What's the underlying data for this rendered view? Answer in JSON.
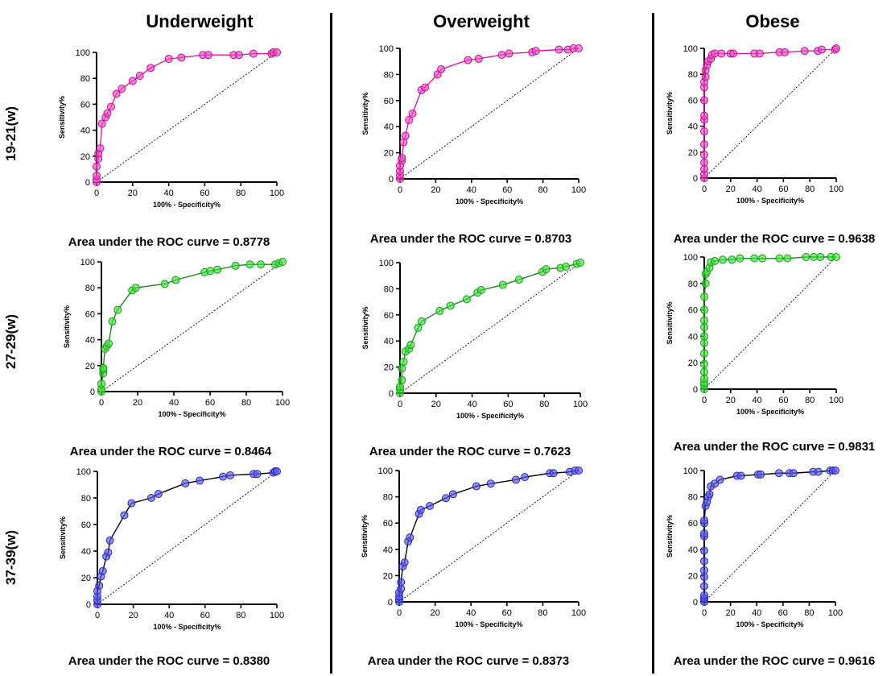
{
  "columns": [
    "Underweight",
    "Overweight",
    "Obese"
  ],
  "rows": [
    "19-21(w)",
    "27-29(w)",
    "37-39(w)"
  ],
  "colors": {
    "magenta": {
      "fill": "#e64fc8",
      "line": "#e0199e",
      "stroke": "#c0108a"
    },
    "green": {
      "fill": "#3fe03a",
      "line": "#1a8a1a",
      "stroke": "#1a9a1a"
    },
    "blue": {
      "fill": "#5b5be8",
      "line": "#000000",
      "stroke": "#2525b5"
    }
  },
  "chart_data": [
    {
      "type": "line",
      "xlabel": "100% - Specificity%",
      "ylabel": "Sensitivity%",
      "xlim": [
        0,
        100
      ],
      "ylim": [
        0,
        100
      ],
      "xticks": [
        0,
        20,
        40,
        60,
        80,
        100
      ],
      "yticks": [
        0,
        20,
        40,
        60,
        80,
        100
      ],
      "reference_line": "diagonal dotted",
      "color": "magenta",
      "auc_label": "Area under the ROC curve = 0.8778",
      "x": [
        0,
        0,
        0,
        0,
        1,
        1,
        2,
        3,
        5,
        6,
        8,
        11,
        14,
        20,
        24,
        30,
        40,
        47,
        59,
        62,
        76,
        79,
        87,
        97,
        98,
        100
      ],
      "y": [
        0,
        2,
        5,
        12,
        18,
        22,
        26,
        45,
        50,
        53,
        58,
        68,
        72,
        78,
        82,
        88,
        95,
        96,
        98,
        98,
        98,
        98,
        99,
        99,
        100,
        100
      ]
    },
    {
      "type": "line",
      "xlabel": "100% - Specificity%",
      "ylabel": "Sensitivity%",
      "xlim": [
        0,
        100
      ],
      "ylim": [
        0,
        100
      ],
      "xticks": [
        0,
        20,
        40,
        60,
        80,
        100
      ],
      "yticks": [
        0,
        20,
        40,
        60,
        80,
        100
      ],
      "reference_line": "diagonal dotted",
      "color": "magenta",
      "auc_label": "Area under the ROC curve = 0.8703",
      "x": [
        0,
        0,
        0,
        0,
        1,
        1,
        2,
        3,
        5,
        7,
        12,
        14,
        21,
        23,
        38,
        44,
        57,
        61,
        74,
        76,
        89,
        94,
        97,
        100
      ],
      "y": [
        0,
        3,
        6,
        10,
        14,
        16,
        28,
        33,
        45,
        50,
        68,
        70,
        80,
        84,
        91,
        92,
        95,
        96,
        97,
        98,
        99,
        99,
        100,
        100
      ]
    },
    {
      "type": "line",
      "xlabel": "100% - Specificity%",
      "ylabel": "Sensitivity%",
      "xlim": [
        0,
        100
      ],
      "ylim": [
        0,
        100
      ],
      "xticks": [
        0,
        20,
        40,
        60,
        80,
        100
      ],
      "yticks": [
        0,
        20,
        40,
        60,
        80,
        100
      ],
      "reference_line": "diagonal dotted",
      "color": "magenta",
      "auc_label": "Area under the ROC curve = 0.9638",
      "x": [
        0,
        0,
        0,
        0,
        0,
        0,
        0,
        0,
        0,
        0,
        0,
        0,
        1,
        1,
        2,
        3,
        5,
        6,
        8,
        13,
        20,
        22,
        38,
        42,
        57,
        61,
        76,
        86,
        89,
        99,
        100
      ],
      "y": [
        0,
        3,
        7,
        12,
        18,
        26,
        36,
        45,
        48,
        60,
        70,
        74,
        78,
        83,
        87,
        90,
        92,
        95,
        96,
        96,
        96,
        96,
        96,
        96,
        97,
        97,
        98,
        98,
        99,
        99,
        100
      ]
    },
    {
      "type": "line",
      "xlabel": "100% - Specificity%",
      "ylabel": "Sensitivity%",
      "xlim": [
        0,
        100
      ],
      "ylim": [
        0,
        100
      ],
      "xticks": [
        0,
        20,
        40,
        60,
        80,
        100
      ],
      "yticks": [
        0,
        20,
        40,
        60,
        80,
        100
      ],
      "reference_line": "diagonal dotted",
      "color": "green",
      "auc_label": "Area under the ROC curve = 0.8464",
      "x": [
        0,
        0,
        0,
        1,
        1,
        1,
        2,
        3,
        4,
        6,
        9,
        17,
        19,
        35,
        41,
        57,
        60,
        64,
        74,
        82,
        88,
        96,
        98,
        100
      ],
      "y": [
        0,
        2,
        6,
        14,
        17,
        18,
        33,
        35,
        37,
        54,
        63,
        78,
        80,
        83,
        86,
        92,
        93,
        94,
        97,
        98,
        98,
        98,
        99,
        100
      ]
    },
    {
      "type": "line",
      "xlabel": "100% - Specificity%",
      "ylabel": "Sensitivity%",
      "xlim": [
        0,
        100
      ],
      "ylim": [
        0,
        100
      ],
      "xticks": [
        0,
        20,
        40,
        60,
        80,
        100
      ],
      "yticks": [
        0,
        20,
        40,
        60,
        80,
        100
      ],
      "reference_line": "diagonal dotted",
      "color": "green",
      "auc_label": "Area under the ROC curve = 0.7623",
      "x": [
        0,
        0,
        0,
        1,
        1,
        2,
        3,
        5,
        6,
        10,
        12,
        22,
        28,
        37,
        43,
        45,
        57,
        66,
        79,
        81,
        89,
        92,
        98,
        100
      ],
      "y": [
        0,
        3,
        5,
        10,
        19,
        24,
        32,
        34,
        37,
        50,
        55,
        63,
        67,
        72,
        77,
        79,
        83,
        87,
        93,
        95,
        96,
        97,
        99,
        100
      ]
    },
    {
      "type": "line",
      "xlabel": "100% - Specificity%",
      "ylabel": "Sensitivity%",
      "xlim": [
        0,
        100
      ],
      "ylim": [
        0,
        100
      ],
      "xticks": [
        0,
        20,
        40,
        60,
        80,
        100
      ],
      "yticks": [
        0,
        20,
        40,
        60,
        80,
        100
      ],
      "reference_line": "diagonal dotted",
      "color": "green",
      "auc_label": "Area under the ROC curve = 0.9831",
      "x": [
        0,
        0,
        0,
        0,
        0,
        0,
        0,
        0,
        0,
        0,
        0,
        0,
        0,
        1,
        1,
        2,
        4,
        5,
        8,
        14,
        21,
        27,
        38,
        44,
        57,
        63,
        77,
        83,
        88,
        96,
        100
      ],
      "y": [
        0,
        3,
        5,
        8,
        13,
        19,
        27,
        35,
        40,
        47,
        52,
        60,
        70,
        80,
        87,
        89,
        92,
        96,
        97,
        98,
        98,
        99,
        99,
        99,
        99,
        99,
        100,
        100,
        100,
        100,
        100
      ]
    },
    {
      "type": "line",
      "xlabel": "100% - Specificity%",
      "ylabel": "Sensitivity%",
      "xlim": [
        0,
        100
      ],
      "ylim": [
        0,
        100
      ],
      "xticks": [
        0,
        20,
        40,
        60,
        80,
        100
      ],
      "yticks": [
        0,
        20,
        40,
        60,
        80,
        100
      ],
      "reference_line": "diagonal dotted",
      "color": "blue",
      "auc_label": "Area under the ROC curve = 0.8380",
      "x": [
        0,
        0,
        0,
        0,
        1,
        2,
        3,
        5,
        6,
        7,
        15,
        19,
        30,
        34,
        49,
        57,
        70,
        74,
        87,
        89,
        98,
        99,
        100
      ],
      "y": [
        0,
        3,
        6,
        10,
        14,
        21,
        25,
        36,
        39,
        48,
        67,
        76,
        80,
        83,
        91,
        93,
        96,
        97,
        98,
        98,
        99,
        100,
        100
      ]
    },
    {
      "type": "line",
      "xlabel": "100% - Specificity%",
      "ylabel": "Sensitivity%",
      "xlim": [
        0,
        100
      ],
      "ylim": [
        0,
        100
      ],
      "xticks": [
        0,
        20,
        40,
        60,
        80,
        100
      ],
      "yticks": [
        0,
        20,
        40,
        60,
        80,
        100
      ],
      "reference_line": "diagonal dotted",
      "color": "blue",
      "auc_label": "Area under the ROC curve = 0.8373",
      "x": [
        0,
        0,
        0,
        0,
        1,
        1,
        2,
        3,
        5,
        6,
        11,
        12,
        17,
        26,
        30,
        43,
        51,
        65,
        70,
        84,
        86,
        95,
        98,
        100
      ],
      "y": [
        0,
        2,
        4,
        7,
        10,
        15,
        27,
        30,
        46,
        49,
        67,
        70,
        73,
        79,
        82,
        88,
        90,
        93,
        95,
        98,
        98,
        99,
        100,
        100
      ]
    },
    {
      "type": "line",
      "xlabel": "100% - Specificity%",
      "ylabel": "Sensitivity%",
      "xlim": [
        0,
        100
      ],
      "ylim": [
        0,
        100
      ],
      "xticks": [
        0,
        20,
        40,
        60,
        80,
        100
      ],
      "yticks": [
        0,
        20,
        40,
        60,
        80,
        100
      ],
      "reference_line": "diagonal dotted",
      "color": "blue",
      "auc_label": "Area under the ROC curve = 0.9616",
      "x": [
        0,
        0,
        0,
        0,
        0,
        0,
        0,
        0,
        0,
        0,
        0,
        0,
        0,
        1,
        2,
        3,
        4,
        5,
        8,
        12,
        25,
        28,
        41,
        43,
        57,
        65,
        68,
        83,
        87,
        96,
        98,
        100
      ],
      "y": [
        0,
        2,
        3,
        5,
        12,
        19,
        24,
        31,
        39,
        50,
        52,
        60,
        62,
        73,
        76,
        80,
        82,
        88,
        90,
        93,
        96,
        96,
        97,
        97,
        98,
        98,
        98,
        99,
        99,
        100,
        100,
        100
      ]
    }
  ]
}
